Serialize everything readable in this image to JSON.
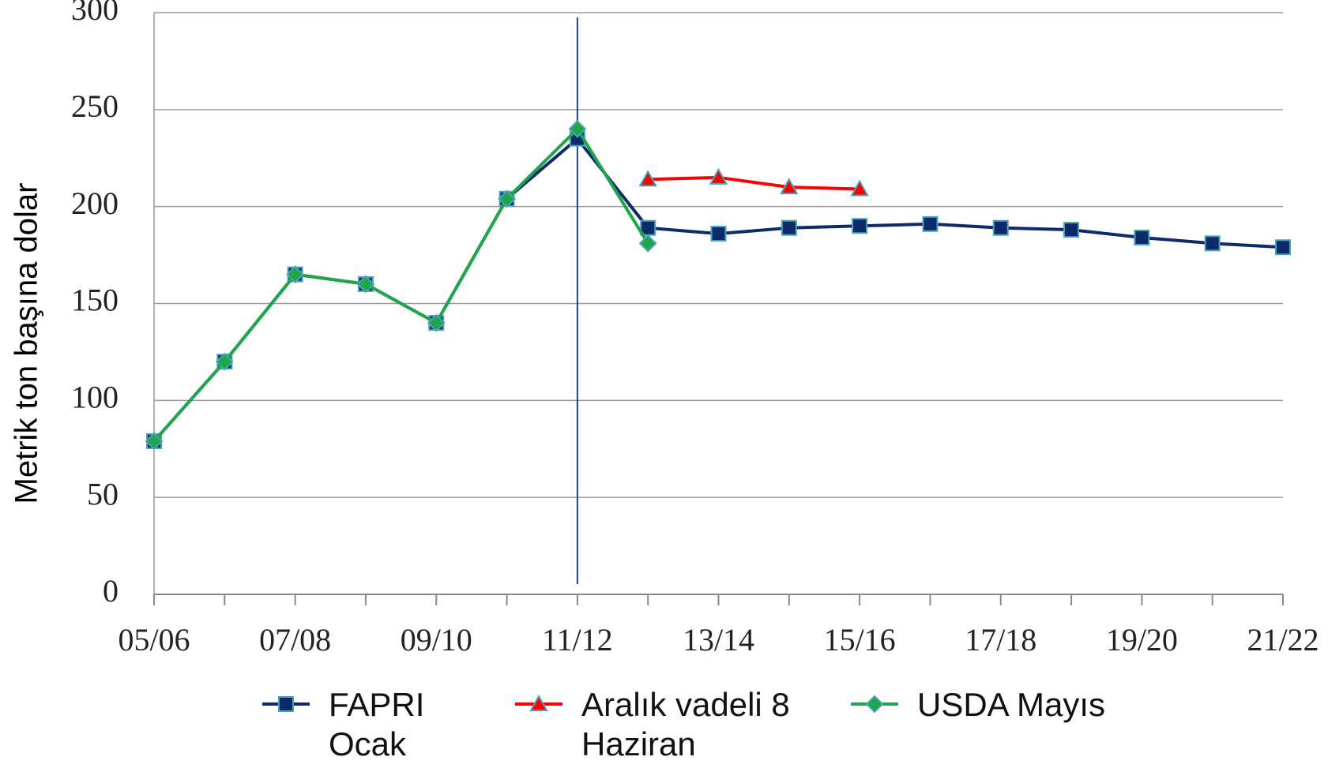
{
  "chart_data": {
    "type": "line",
    "y_label": "Metrik ton başına dolar",
    "categories": [
      "05/06",
      null,
      "07/08",
      null,
      "09/10",
      null,
      "11/12",
      null,
      "13/14",
      null,
      "15/16",
      null,
      "17/18",
      null,
      "19/20",
      null,
      "21/22"
    ],
    "series": [
      {
        "name": "FAPRI Ocak",
        "color": "#0d2a6b",
        "marker": "square",
        "values": [
          79,
          120,
          165,
          160,
          140,
          204,
          235,
          189,
          186,
          189,
          190,
          191,
          189,
          188,
          184,
          181,
          179
        ]
      },
      {
        "name": "Aralık vadeli 8 Haziran",
        "color": "#ff0000",
        "marker": "triangle",
        "values": [
          null,
          null,
          null,
          null,
          null,
          null,
          null,
          214,
          215,
          210,
          209,
          null,
          null,
          null,
          null,
          null,
          null
        ]
      },
      {
        "name": "USDA Mayıs",
        "color": "#1fa64a",
        "marker": "diamond",
        "values": [
          79,
          120,
          165,
          160,
          140,
          204,
          240,
          181,
          null,
          null,
          null,
          null,
          null,
          null,
          null,
          null,
          null
        ]
      }
    ],
    "ylim": [
      0,
      300
    ],
    "yticks": [
      0,
      50,
      100,
      150,
      200,
      250,
      300
    ],
    "grid": true
  }
}
